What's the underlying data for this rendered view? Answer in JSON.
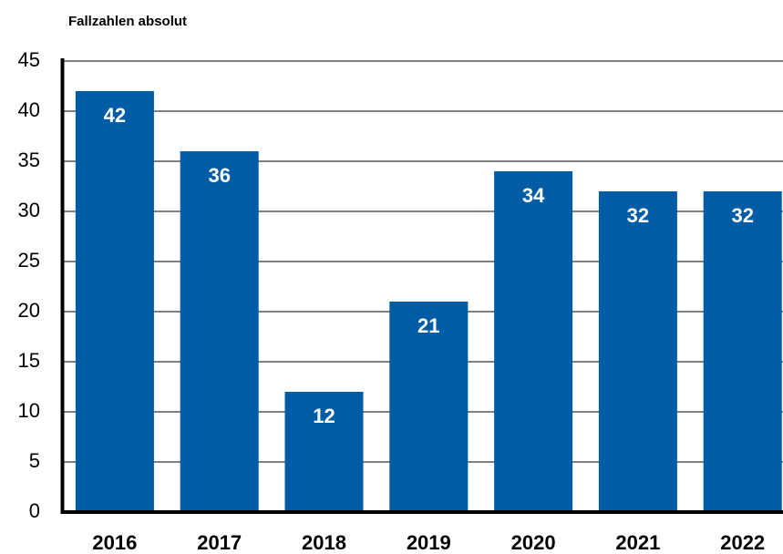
{
  "chart_data": {
    "type": "bar",
    "title": "Fallzahlen absolut",
    "categories": [
      "2016",
      "2017",
      "2018",
      "2019",
      "2020",
      "2021",
      "2022"
    ],
    "values": [
      42,
      36,
      12,
      21,
      34,
      32,
      32
    ],
    "color": "#005ca5",
    "ylim": [
      0,
      45
    ],
    "yticks": [
      0,
      5,
      10,
      15,
      20,
      25,
      30,
      35,
      40,
      45
    ],
    "grid": true
  }
}
